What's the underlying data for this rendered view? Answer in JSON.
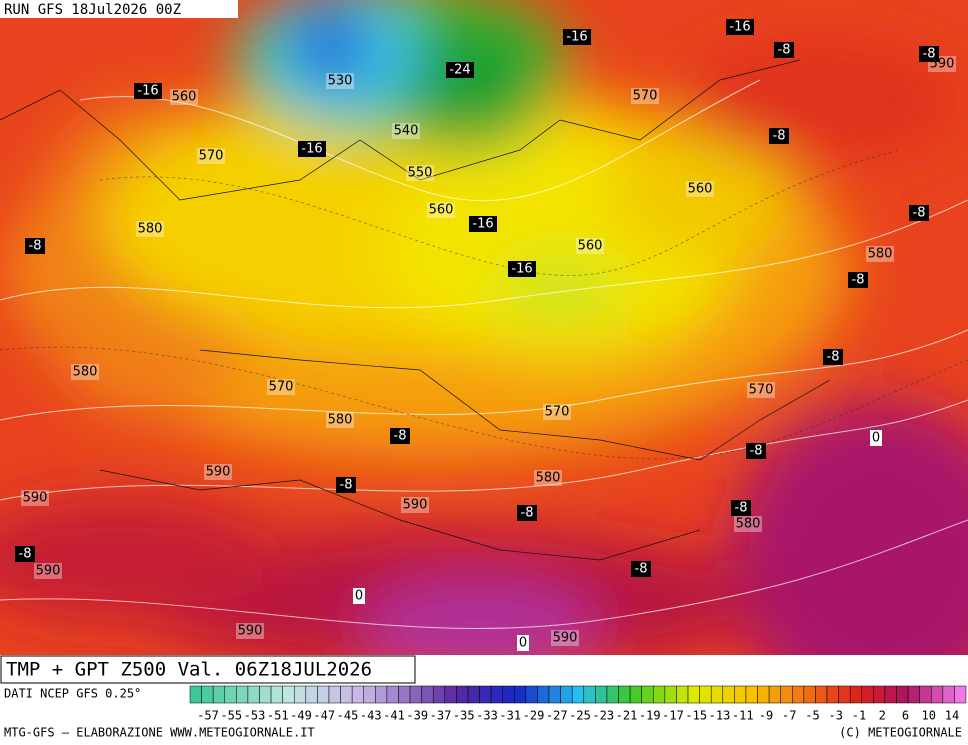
{
  "header": {
    "run": "RUN GFS 18Jul2026 00Z"
  },
  "map": {
    "height_labels": [
      530,
      560,
      570,
      540,
      550,
      560,
      580,
      560,
      560,
      570,
      590,
      580,
      580,
      570,
      580,
      570,
      570,
      590,
      590,
      590,
      580,
      580,
      590,
      590,
      590
    ],
    "temperature_labels": [
      -16,
      -16,
      -24,
      -16,
      -16,
      -8,
      -8,
      -8,
      -8,
      -16,
      -16,
      -8,
      -8,
      -8,
      -8,
      -8,
      -8,
      -8,
      -8,
      -8,
      -8,
      0,
      0,
      0
    ]
  },
  "footer": {
    "title": "TMP + GPT Z500 Val. 06Z18JUL2026",
    "source": "DATI NCEP GFS 0.25°",
    "scale": [
      -57,
      -55,
      -53,
      -51,
      -49,
      -47,
      -45,
      -43,
      -41,
      -39,
      -37,
      -35,
      -33,
      -31,
      -29,
      -27,
      -25,
      -23,
      -21,
      -19,
      -17,
      -15,
      -13,
      -11,
      -9,
      -7,
      -5,
      -3,
      -1,
      2,
      6,
      10,
      14
    ],
    "credit": "MTG-GFS — ELABORAZIONE WWW.METEOGIORNALE.IT",
    "copyright": "(C) METEOGIORNALE"
  }
}
